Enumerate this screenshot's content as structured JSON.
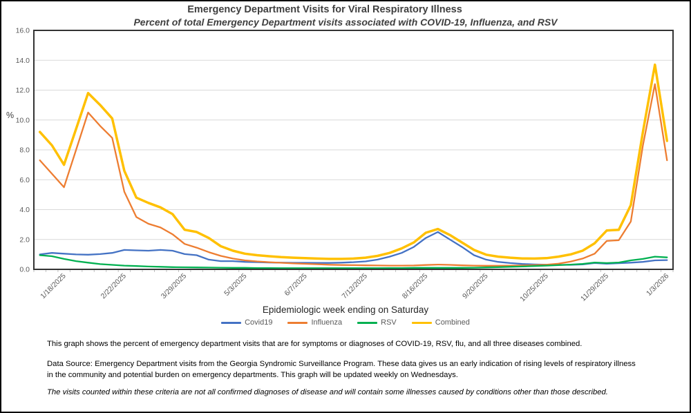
{
  "header": {
    "title": "Emergency Department Visits for Viral Respiratory Illness",
    "subtitle": "Percent of total Emergency Department visits associated with COVID-19, Influenza, and RSV"
  },
  "chart": {
    "y_unit_label": "%",
    "x_axis_title": "Epidemiologic week ending on Saturday"
  },
  "legend": [
    {
      "label": "Covid19",
      "color": "#4472C4"
    },
    {
      "label": "Influenza",
      "color": "#ED7D31"
    },
    {
      "label": "RSV",
      "color": "#00B050"
    },
    {
      "label": "Combined",
      "color": "#FFC000"
    }
  ],
  "footer": {
    "p1": "This graph shows the percent of emergency department visits that are for symptoms or diagnoses of COVID-19, RSV, flu, and all three diseases combined.",
    "p2_lines": [
      "Data Source: Emergency Department visits from the Georgia Syndromic Surveillance Program. These data gives us an early indication of rising levels of respiratory illness",
      "in the community and potential burden on emergency departments. This graph will be updated weekly on Wednesdays."
    ],
    "p3": "The visits counted within these criteria are not all confirmed diagnoses of disease and will contain some illnesses caused by conditions other than those described."
  },
  "chart_data": {
    "type": "line",
    "title": "Emergency Department Visits for Viral Respiratory Illness",
    "subtitle": "Percent of total Emergency Department visits associated with COVID-19, Influenza, and RSV",
    "xlabel": "Epidemiologic week ending on Saturday",
    "ylabel": "%",
    "ylim": [
      0,
      16
    ],
    "y_tick_step": 2,
    "grid": true,
    "legend_position": "bottom",
    "x": [
      "1/4/2025",
      "1/11/2025",
      "1/18/2025",
      "1/25/2025",
      "2/1/2025",
      "2/8/2025",
      "2/15/2025",
      "2/22/2025",
      "3/1/2025",
      "3/8/2025",
      "3/15/2025",
      "3/22/2025",
      "3/29/2025",
      "4/5/2025",
      "4/12/2025",
      "4/19/2025",
      "4/26/2025",
      "5/3/2025",
      "5/10/2025",
      "5/17/2025",
      "5/24/2025",
      "5/31/2025",
      "6/7/2025",
      "6/14/2025",
      "6/21/2025",
      "6/28/2025",
      "7/5/2025",
      "7/12/2025",
      "7/19/2025",
      "7/26/2025",
      "8/2/2025",
      "8/9/2025",
      "8/16/2025",
      "8/23/2025",
      "8/30/2025",
      "9/6/2025",
      "9/13/2025",
      "9/20/2025",
      "9/27/2025",
      "10/4/2025",
      "10/11/2025",
      "10/18/2025",
      "10/25/2025",
      "11/1/2025",
      "11/8/2025",
      "11/15/2025",
      "11/22/2025",
      "11/29/2025",
      "12/6/2025",
      "12/13/2025",
      "12/20/2025",
      "12/27/2025",
      "1/3/2026"
    ],
    "x_label_indices": [
      2,
      7,
      12,
      17,
      22,
      27,
      32,
      37,
      42,
      47,
      52
    ],
    "x_tick_labels": [
      "1/18/2025",
      "2/22/2025",
      "3/29/2025",
      "5/3/2025",
      "6/7/2025",
      "7/12/2025",
      "8/16/2025",
      "9/20/2025",
      "10/25/2025",
      "11/29/2025",
      "1/3/2026"
    ],
    "series": [
      {
        "name": "Covid19",
        "color": "#4472C4",
        "width": 2.3,
        "values": [
          1.0,
          1.1,
          1.05,
          1.0,
          0.98,
          1.02,
          1.1,
          1.3,
          1.27,
          1.25,
          1.3,
          1.25,
          1.02,
          0.95,
          0.65,
          0.55,
          0.55,
          0.5,
          0.48,
          0.46,
          0.45,
          0.44,
          0.44,
          0.43,
          0.43,
          0.45,
          0.48,
          0.53,
          0.65,
          0.85,
          1.1,
          1.5,
          2.1,
          2.5,
          2.0,
          1.5,
          0.95,
          0.65,
          0.5,
          0.42,
          0.36,
          0.33,
          0.31,
          0.3,
          0.3,
          0.33,
          0.42,
          0.38,
          0.41,
          0.45,
          0.5,
          0.6,
          0.62
        ]
      },
      {
        "name": "Influenza",
        "color": "#ED7D31",
        "width": 2.3,
        "values": [
          7.3,
          6.4,
          5.5,
          8.0,
          10.5,
          9.6,
          8.8,
          5.2,
          3.5,
          3.05,
          2.8,
          2.35,
          1.7,
          1.45,
          1.15,
          0.9,
          0.72,
          0.6,
          0.53,
          0.48,
          0.44,
          0.4,
          0.37,
          0.34,
          0.31,
          0.29,
          0.28,
          0.27,
          0.26,
          0.25,
          0.25,
          0.26,
          0.29,
          0.32,
          0.3,
          0.27,
          0.25,
          0.24,
          0.24,
          0.25,
          0.26,
          0.28,
          0.31,
          0.38,
          0.52,
          0.72,
          1.05,
          1.9,
          1.95,
          3.2,
          8.3,
          12.4,
          7.3
        ]
      },
      {
        "name": "RSV",
        "color": "#00B050",
        "width": 2.3,
        "values": [
          0.95,
          0.88,
          0.7,
          0.55,
          0.45,
          0.35,
          0.3,
          0.25,
          0.22,
          0.19,
          0.17,
          0.15,
          0.14,
          0.13,
          0.12,
          0.11,
          0.1,
          0.1,
          0.09,
          0.09,
          0.08,
          0.08,
          0.08,
          0.08,
          0.08,
          0.08,
          0.08,
          0.08,
          0.08,
          0.09,
          0.09,
          0.1,
          0.1,
          0.1,
          0.1,
          0.1,
          0.11,
          0.13,
          0.15,
          0.17,
          0.19,
          0.22,
          0.25,
          0.28,
          0.32,
          0.36,
          0.46,
          0.42,
          0.46,
          0.6,
          0.7,
          0.85,
          0.8
        ]
      },
      {
        "name": "Combined",
        "color": "#FFC000",
        "width": 3.5,
        "values": [
          9.2,
          8.3,
          7.0,
          9.4,
          11.8,
          11.0,
          10.1,
          6.6,
          4.8,
          4.45,
          4.15,
          3.7,
          2.65,
          2.5,
          2.1,
          1.55,
          1.25,
          1.05,
          0.95,
          0.88,
          0.82,
          0.78,
          0.75,
          0.72,
          0.7,
          0.7,
          0.72,
          0.78,
          0.9,
          1.1,
          1.4,
          1.8,
          2.45,
          2.7,
          2.3,
          1.8,
          1.3,
          0.98,
          0.85,
          0.78,
          0.73,
          0.72,
          0.75,
          0.85,
          1.0,
          1.25,
          1.75,
          2.6,
          2.65,
          4.3,
          9.2,
          13.7,
          8.6
        ]
      }
    ]
  }
}
